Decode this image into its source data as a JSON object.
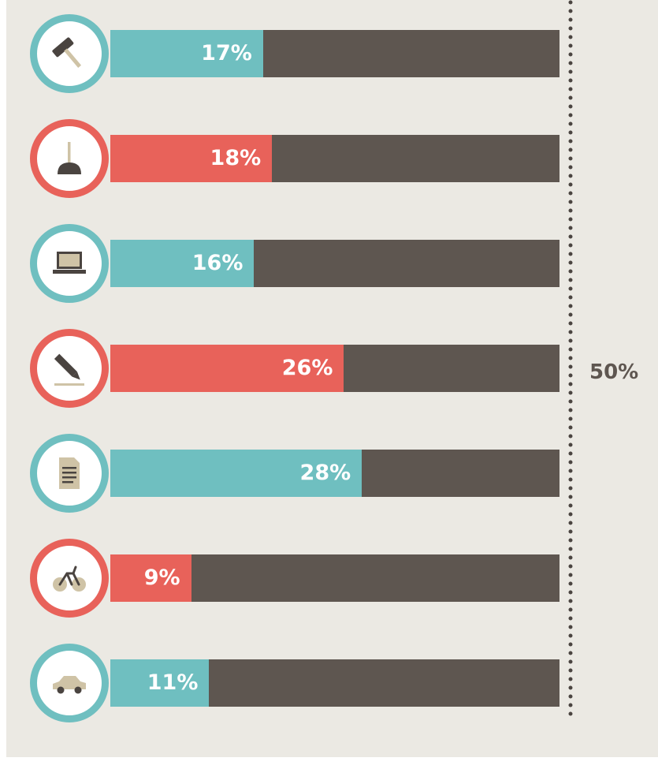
{
  "chart_data": {
    "type": "bar",
    "orientation": "horizontal",
    "bar_max_value": 50,
    "reference_line": {
      "value": 50,
      "label": "50%"
    },
    "colors": {
      "teal": "#6fbfc0",
      "red": "#e8625a",
      "track": "#5e5650",
      "background": "#ebe9e3"
    },
    "bars": [
      {
        "icon": "hammer-icon",
        "value": 17,
        "label": "17%",
        "color": "teal"
      },
      {
        "icon": "plunger-icon",
        "value": 18,
        "label": "18%",
        "color": "red"
      },
      {
        "icon": "laptop-icon",
        "value": 16,
        "label": "16%",
        "color": "teal"
      },
      {
        "icon": "pencil-icon",
        "value": 26,
        "label": "26%",
        "color": "red"
      },
      {
        "icon": "document-icon",
        "value": 28,
        "label": "28%",
        "color": "teal"
      },
      {
        "icon": "bicycle-icon",
        "value": 9,
        "label": "9%",
        "color": "red"
      },
      {
        "icon": "car-icon",
        "value": 11,
        "label": "11%",
        "color": "teal"
      }
    ]
  }
}
